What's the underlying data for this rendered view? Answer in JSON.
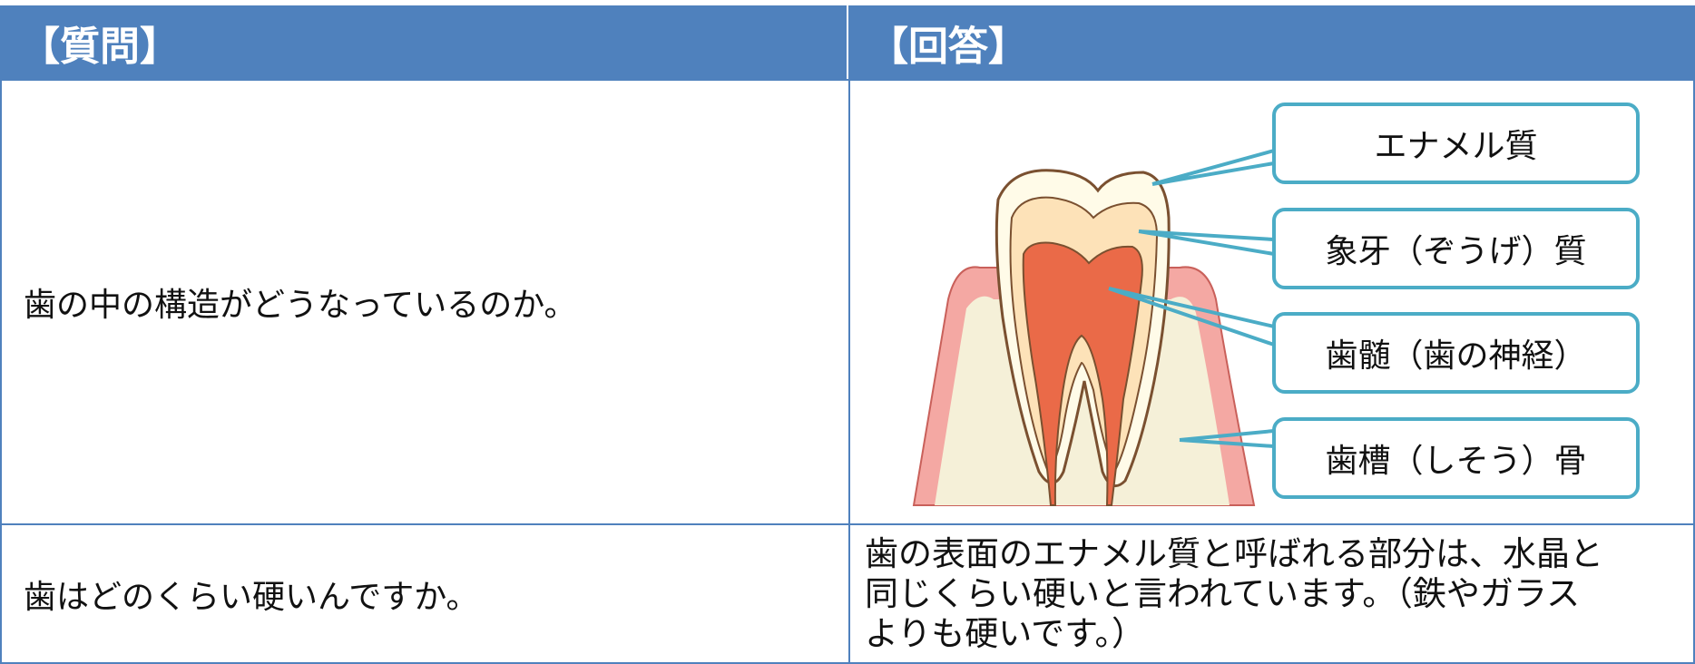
{
  "header": {
    "question": "【質問】",
    "answer": "【回答】"
  },
  "rows": [
    {
      "question": "歯の中の構造がどうなっているのか。",
      "labels": [
        "エナメル質",
        "象牙（ぞうげ）質",
        "歯髄（歯の神経）",
        "歯槽（しそう）骨"
      ]
    },
    {
      "question": "歯はどのくらい硬いんですか。",
      "answer": [
        "歯の表面のエナメル質と呼ばれる部分は、水晶と",
        "同じくらい硬いと言われています。（鉄やガラス",
        "よりも硬いです。）"
      ]
    }
  ]
}
